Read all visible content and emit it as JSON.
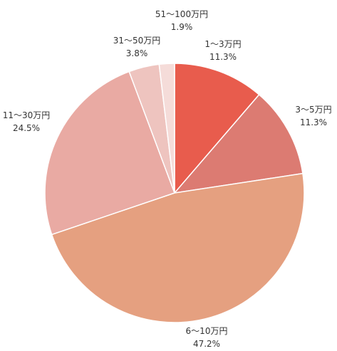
{
  "chart_data": {
    "type": "pie",
    "start_angle_deg": 0,
    "direction": "clockwise",
    "slices": [
      {
        "name": "1〜3万円",
        "label": "11.3%",
        "value": 11.3,
        "color": "#E85C4D"
      },
      {
        "name": "3〜5万円",
        "label": "11.3%",
        "value": 11.3,
        "color": "#DC7B72"
      },
      {
        "name": "6〜10万円",
        "label": "47.2%",
        "value": 47.2,
        "color": "#E5A080"
      },
      {
        "name": "11〜30万円",
        "label": "24.5%",
        "value": 24.5,
        "color": "#E9AAA3"
      },
      {
        "name": "31〜50万円",
        "label": "3.8%",
        "value": 3.8,
        "color": "#EEC4BF"
      },
      {
        "name": "51〜100万円",
        "label": "1.9%",
        "value": 1.9,
        "color": "#F5DCD9"
      }
    ]
  }
}
